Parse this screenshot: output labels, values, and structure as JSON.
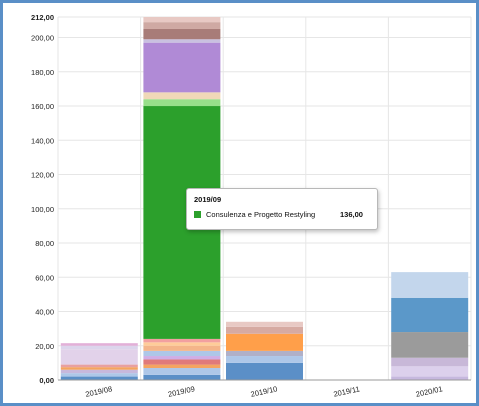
{
  "chart_data": {
    "type": "bar",
    "stacked": true,
    "categories": [
      "2019/08",
      "2019/09",
      "2019/10",
      "2019/11",
      "2020/01"
    ],
    "ylim": [
      0,
      212
    ],
    "yticks": [
      "0,00",
      "20,00",
      "40,00",
      "60,00",
      "80,00",
      "100,00",
      "120,00",
      "140,00",
      "160,00",
      "180,00",
      "200,00",
      "212,00"
    ],
    "ytick_values": [
      0,
      20,
      40,
      60,
      80,
      100,
      120,
      140,
      160,
      180,
      200,
      212
    ],
    "grid": true,
    "stacks": [
      [
        {
          "value": 2,
          "color": "#5b8fc7"
        },
        {
          "value": 2,
          "color": "#aec7e8"
        },
        {
          "value": 2,
          "color": "#c7b8dc"
        },
        {
          "value": 1.5,
          "color": "#f4a460"
        },
        {
          "value": 1.5,
          "color": "#e8a0a0"
        },
        {
          "value": 9,
          "color": "#e2d2ea"
        },
        {
          "value": 2,
          "color": "#dcd5ec"
        },
        {
          "value": 1.5,
          "color": "#e2b0d8"
        }
      ],
      [
        {
          "value": 3,
          "color": "#5b8fc7"
        },
        {
          "value": 4,
          "color": "#aec7e8"
        },
        {
          "value": 2,
          "color": "#f4a460"
        },
        {
          "value": 3,
          "color": "#e07a7a"
        },
        {
          "value": 2,
          "color": "#d0aee6"
        },
        {
          "value": 3,
          "color": "#aec7e8"
        },
        {
          "value": 3,
          "color": "#f4b58a"
        },
        {
          "value": 2,
          "color": "#ffcc99"
        },
        {
          "value": 2,
          "color": "#f2a0a0"
        },
        {
          "value": 136,
          "color": "#2ca02c"
        },
        {
          "value": 4,
          "color": "#98df8a"
        },
        {
          "value": 4,
          "color": "#f0d8b8"
        },
        {
          "value": 29,
          "color": "#b08ad6"
        },
        {
          "value": 2,
          "color": "#c9c1e0"
        },
        {
          "value": 6,
          "color": "#a87c78"
        },
        {
          "value": 4,
          "color": "#cfa9a3"
        },
        {
          "value": 3,
          "color": "#e8c9c4"
        }
      ],
      [
        {
          "value": 10,
          "color": "#5b8fc7"
        },
        {
          "value": 4,
          "color": "#aec7e8"
        },
        {
          "value": 3,
          "color": "#b0b0c8"
        },
        {
          "value": 10,
          "color": "#ff9f4a"
        },
        {
          "value": 4,
          "color": "#d6aaa2"
        },
        {
          "value": 3,
          "color": "#e8c9c4"
        }
      ],
      [],
      [
        {
          "value": 2,
          "color": "#c6b8de"
        },
        {
          "value": 6,
          "color": "#dcd0ec"
        },
        {
          "value": 5,
          "color": "#c8b8d8"
        },
        {
          "value": 15,
          "color": "#9b9b9b"
        },
        {
          "value": 20,
          "color": "#5b98c9"
        },
        {
          "value": 15,
          "color": "#c3d6ec"
        }
      ]
    ]
  },
  "tooltip": {
    "title": "2019/09",
    "series_name": "Consulenza e Progetto Restyling",
    "value": "136,00",
    "color": "#2ca02c"
  }
}
